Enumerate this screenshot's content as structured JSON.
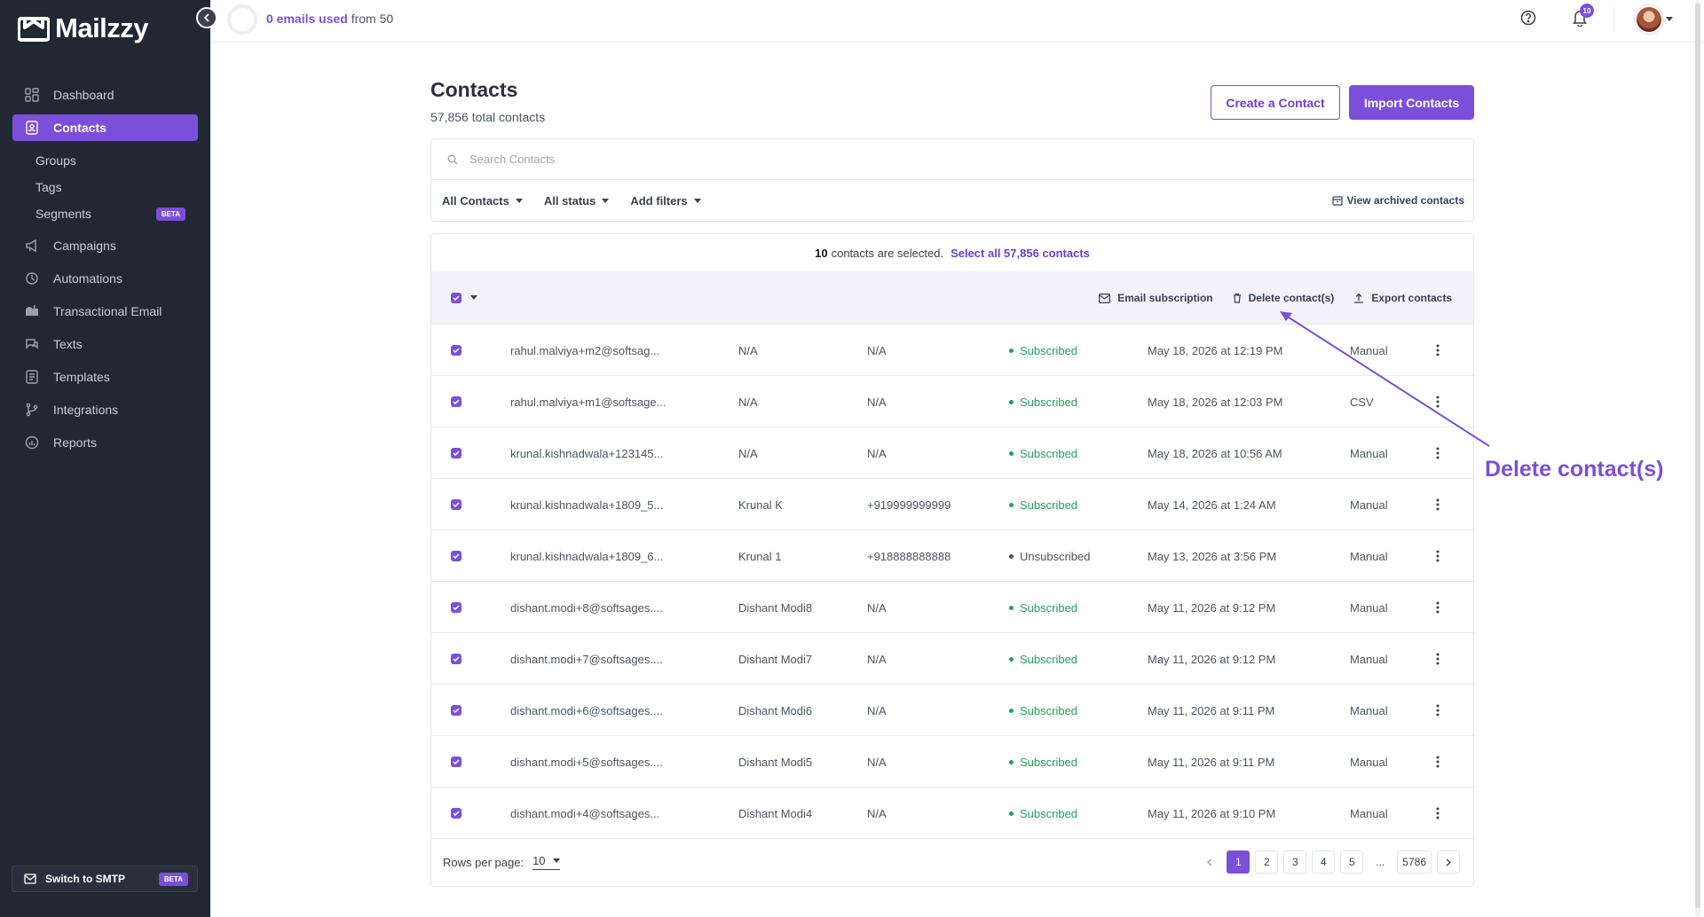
{
  "app": {
    "name": "Mailzzy"
  },
  "colors": {
    "accent": "#7b4fd9",
    "sidebar_bg": "#222833",
    "subscribed": "#22a05b"
  },
  "usage": {
    "used": "0 emails used",
    "suffix": "from 50"
  },
  "notifications": {
    "count": "10"
  },
  "sidebar": {
    "items": [
      {
        "label": "Dashboard",
        "icon": "dashboard-icon"
      },
      {
        "label": "Contacts",
        "icon": "contacts-icon"
      },
      {
        "label": "Groups"
      },
      {
        "label": "Tags"
      },
      {
        "label": "Segments",
        "badge": "BETA"
      },
      {
        "label": "Campaigns",
        "icon": "megaphone-icon"
      },
      {
        "label": "Automations",
        "icon": "automation-icon"
      },
      {
        "label": "Transactional Email",
        "icon": "mailbox-icon"
      },
      {
        "label": "Texts",
        "icon": "chat-icon"
      },
      {
        "label": "Templates",
        "icon": "template-icon"
      },
      {
        "label": "Integrations",
        "icon": "branch-icon"
      },
      {
        "label": "Reports",
        "icon": "reports-icon"
      }
    ],
    "smtp": {
      "label": "Switch to SMTP",
      "badge": "BETA"
    }
  },
  "page": {
    "title": "Contacts",
    "subtitle": "57,856 total contacts"
  },
  "buttons": {
    "create": "Create a Contact",
    "import": "Import Contacts"
  },
  "search": {
    "placeholder": "Search Contacts"
  },
  "filters": {
    "contacts": "All Contacts",
    "status": "All status",
    "add": "Add filters",
    "archived": "View archived contacts"
  },
  "selection": {
    "count": "10",
    "text": "contacts are selected.",
    "select_all": "Select all 57,856 contacts"
  },
  "actions": {
    "email_sub": "Email subscription",
    "delete": "Delete contact(s)",
    "export": "Export contacts"
  },
  "rows": [
    {
      "email": "rahul.malviya+m2@softsag...",
      "name": "N/A",
      "phone": "N/A",
      "status": "Subscribed",
      "date": "May 18, 2026 at 12:19 PM",
      "source": "Manual"
    },
    {
      "email": "rahul.malviya+m1@softsage...",
      "name": "N/A",
      "phone": "N/A",
      "status": "Subscribed",
      "date": "May 18, 2026 at 12:03 PM",
      "source": "CSV"
    },
    {
      "email": "krunal.kishnadwala+123145...",
      "name": "N/A",
      "phone": "N/A",
      "status": "Subscribed",
      "date": "May 18, 2026 at 10:56 AM",
      "source": "Manual"
    },
    {
      "email": "krunal.kishnadwala+1809_5...",
      "name": "Krunal K",
      "phone": "+919999999999",
      "status": "Subscribed",
      "date": "May 14, 2026 at 1:24 AM",
      "source": "Manual"
    },
    {
      "email": "krunal.kishnadwala+1809_6...",
      "name": "Krunal 1",
      "phone": "+918888888888",
      "status": "Unsubscribed",
      "date": "May 13, 2026 at 3:56 PM",
      "source": "Manual"
    },
    {
      "email": "dishant.modi+8@softsages....",
      "name": "Dishant Modi8",
      "phone": "N/A",
      "status": "Subscribed",
      "date": "May 11, 2026 at 9:12 PM",
      "source": "Manual"
    },
    {
      "email": "dishant.modi+7@softsages....",
      "name": "Dishant Modi7",
      "phone": "N/A",
      "status": "Subscribed",
      "date": "May 11, 2026 at 9:12 PM",
      "source": "Manual"
    },
    {
      "email": "dishant.modi+6@softsages....",
      "name": "Dishant Modi6",
      "phone": "N/A",
      "status": "Subscribed",
      "date": "May 11, 2026 at 9:11 PM",
      "source": "Manual"
    },
    {
      "email": "dishant.modi+5@softsages....",
      "name": "Dishant Modi5",
      "phone": "N/A",
      "status": "Subscribed",
      "date": "May 11, 2026 at 9:11 PM",
      "source": "Manual"
    },
    {
      "email": "dishant.modi+4@softsages...",
      "name": "Dishant Modi4",
      "phone": "N/A",
      "status": "Subscribed",
      "date": "May 11, 2026 at 9:10 PM",
      "source": "Manual"
    }
  ],
  "pagination": {
    "rows_label": "Rows per page:",
    "rows_value": "10",
    "pages": [
      "1",
      "2",
      "3",
      "4",
      "5",
      "...",
      "5786"
    ]
  },
  "annotation": {
    "label": "Delete contact(s)"
  }
}
